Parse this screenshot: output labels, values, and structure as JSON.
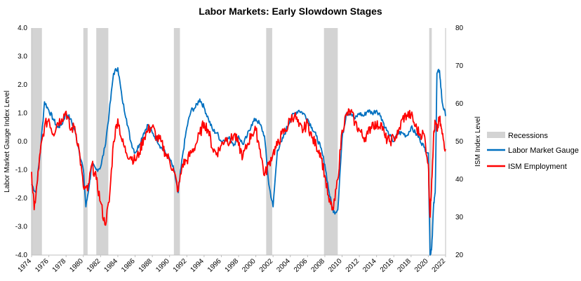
{
  "chart_data": {
    "type": "line",
    "title": "Labor Markets: Early Slowdown Stages",
    "ylabel_left": "Labor Market Gauge Index Level",
    "ylabel_right": "ISM Index Level",
    "ylim_left": [
      -4.0,
      4.0
    ],
    "ylim_right": [
      20,
      80
    ],
    "xlim": [
      1974,
      2022
    ],
    "yticks_left": [
      "4.0",
      "3.0",
      "2.0",
      "1.0",
      "0.0",
      "-1.0",
      "-2.0",
      "-3.0",
      "-4.0"
    ],
    "yticks_right": [
      "80",
      "70",
      "60",
      "50",
      "40",
      "30",
      "20"
    ],
    "xticks": [
      "1974",
      "1976",
      "1978",
      "1980",
      "1982",
      "1984",
      "1986",
      "1988",
      "1990",
      "1992",
      "1994",
      "1996",
      "1998",
      "2000",
      "2002",
      "2004",
      "2006",
      "2008",
      "2010",
      "2012",
      "2014",
      "2016",
      "2018",
      "2020",
      "2022"
    ],
    "grid": false,
    "legend_position": "right",
    "recessions": {
      "name": "Recessions",
      "color": "#d3d3d3",
      "periods": [
        [
          1974.0,
          1975.2
        ],
        [
          1980.0,
          1980.5
        ],
        [
          1981.5,
          1982.9
        ],
        [
          1990.5,
          1991.2
        ],
        [
          2001.2,
          2001.9
        ],
        [
          2007.9,
          2009.5
        ],
        [
          2020.1,
          2020.4
        ]
      ]
    },
    "series": [
      {
        "name": "Labor Market Gauge",
        "axis": "left",
        "color": "#0070c0",
        "x": [
          1974.0,
          1974.5,
          1975.0,
          1975.5,
          1976.0,
          1976.5,
          1977.0,
          1977.5,
          1978.0,
          1978.5,
          1979.0,
          1979.5,
          1980.0,
          1980.3,
          1980.7,
          1981.0,
          1981.5,
          1982.0,
          1982.5,
          1983.0,
          1983.5,
          1984.0,
          1984.5,
          1985.0,
          1985.5,
          1986.0,
          1986.5,
          1987.0,
          1987.5,
          1988.0,
          1988.5,
          1989.0,
          1989.5,
          1990.0,
          1990.5,
          1991.0,
          1991.5,
          1992.0,
          1992.5,
          1993.0,
          1993.5,
          1994.0,
          1994.5,
          1995.0,
          1995.5,
          1996.0,
          1996.5,
          1997.0,
          1997.5,
          1998.0,
          1998.5,
          1999.0,
          1999.5,
          2000.0,
          2000.5,
          2001.0,
          2001.5,
          2002.0,
          2002.5,
          2003.0,
          2003.5,
          2004.0,
          2004.5,
          2005.0,
          2005.5,
          2006.0,
          2006.5,
          2007.0,
          2007.5,
          2008.0,
          2008.5,
          2009.0,
          2009.5,
          2010.0,
          2010.5,
          2011.0,
          2011.5,
          2012.0,
          2012.5,
          2013.0,
          2013.5,
          2014.0,
          2014.5,
          2015.0,
          2015.5,
          2016.0,
          2016.5,
          2017.0,
          2017.5,
          2018.0,
          2018.5,
          2019.0,
          2019.5,
          2020.0,
          2020.2,
          2020.4,
          2020.6,
          2020.8,
          2021.0,
          2021.3,
          2021.6,
          2022.0
        ],
        "values": [
          -1.5,
          -1.8,
          -0.4,
          1.4,
          1.1,
          0.8,
          0.5,
          0.6,
          1.0,
          0.8,
          0.4,
          -0.3,
          -1.0,
          -2.3,
          -1.5,
          -0.8,
          -1.0,
          -0.9,
          -0.2,
          1.0,
          2.4,
          2.6,
          1.5,
          0.8,
          0.0,
          -0.4,
          -0.1,
          0.3,
          0.6,
          0.3,
          0.1,
          -0.2,
          -0.4,
          -0.6,
          -1.0,
          -1.8,
          -0.5,
          0.5,
          1.1,
          1.2,
          1.5,
          1.2,
          0.8,
          0.4,
          0.3,
          0.0,
          0.1,
          0.1,
          -0.1,
          0.2,
          -0.1,
          0.2,
          0.6,
          0.8,
          0.6,
          0.2,
          -1.5,
          -2.3,
          -0.3,
          0.0,
          0.4,
          0.8,
          1.0,
          1.1,
          1.0,
          0.8,
          0.5,
          0.2,
          -0.2,
          -0.8,
          -1.8,
          -2.5,
          -2.4,
          0.1,
          1.0,
          1.0,
          0.8,
          1.0,
          0.9,
          1.1,
          1.0,
          1.1,
          0.9,
          0.5,
          0.2,
          0.0,
          0.3,
          0.3,
          0.2,
          0.5,
          0.3,
          0.1,
          -0.2,
          -0.4,
          -4.0,
          -3.7,
          -2.3,
          -1.8,
          2.4,
          2.5,
          1.4,
          0.9
        ]
      },
      {
        "name": "ISM Employment",
        "axis": "right",
        "color": "#ff0000",
        "x": [
          1974.0,
          1974.3,
          1974.7,
          1975.0,
          1975.5,
          1976.0,
          1976.5,
          1977.0,
          1977.5,
          1978.0,
          1978.5,
          1979.0,
          1979.5,
          1980.0,
          1980.5,
          1981.0,
          1981.5,
          1982.0,
          1982.5,
          1983.0,
          1983.5,
          1984.0,
          1984.5,
          1985.0,
          1985.5,
          1986.0,
          1986.5,
          1987.0,
          1987.5,
          1988.0,
          1988.5,
          1989.0,
          1989.5,
          1990.0,
          1990.5,
          1991.0,
          1991.5,
          1992.0,
          1992.5,
          1993.0,
          1993.5,
          1994.0,
          1994.5,
          1995.0,
          1995.5,
          1996.0,
          1996.5,
          1997.0,
          1997.5,
          1998.0,
          1998.5,
          1999.0,
          1999.5,
          2000.0,
          2000.5,
          2001.0,
          2001.5,
          2002.0,
          2002.5,
          2003.0,
          2003.5,
          2004.0,
          2004.5,
          2005.0,
          2005.5,
          2006.0,
          2006.5,
          2007.0,
          2007.5,
          2008.0,
          2008.5,
          2009.0,
          2009.5,
          2010.0,
          2010.5,
          2011.0,
          2011.5,
          2012.0,
          2012.5,
          2013.0,
          2013.5,
          2014.0,
          2014.5,
          2015.0,
          2015.5,
          2016.0,
          2016.5,
          2017.0,
          2017.5,
          2018.0,
          2018.5,
          2019.0,
          2019.5,
          2020.0,
          2020.2,
          2020.4,
          2020.6,
          2020.8,
          2021.0,
          2021.3,
          2021.6,
          2022.0
        ],
        "values": [
          42,
          32,
          40,
          47,
          54,
          56,
          52,
          55,
          56,
          58,
          53,
          54,
          48,
          38,
          37,
          44,
          40,
          34,
          28,
          34,
          50,
          56,
          50,
          47,
          46,
          45,
          47,
          51,
          53,
          54,
          51,
          50,
          47,
          45,
          42,
          37,
          44,
          45,
          47,
          49,
          52,
          55,
          53,
          48,
          47,
          49,
          51,
          50,
          52,
          49,
          46,
          49,
          52,
          53,
          48,
          41,
          44,
          47,
          49,
          52,
          53,
          56,
          57,
          54,
          53,
          55,
          51,
          49,
          47,
          41,
          34,
          32,
          40,
          53,
          57,
          58,
          55,
          53,
          51,
          52,
          55,
          54,
          55,
          51,
          50,
          51,
          52,
          56,
          57,
          57,
          54,
          52,
          52,
          44,
          30,
          40,
          51,
          55,
          53,
          56,
          52,
          48
        ]
      }
    ]
  },
  "legend": {
    "recessions_label": "Recessions",
    "gauge_label": "Labor Market Gauge",
    "ism_label": "ISM Employment"
  }
}
